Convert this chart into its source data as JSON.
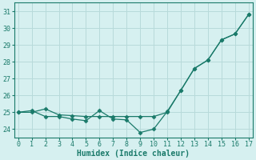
{
  "xlabel": "Humidex (Indice chaleur)",
  "x": [
    0,
    1,
    2,
    3,
    4,
    5,
    6,
    7,
    8,
    9,
    10,
    11,
    12,
    13,
    14,
    15,
    16,
    17
  ],
  "y_line1": [
    25.0,
    25.0,
    25.2,
    24.85,
    24.8,
    24.75,
    24.75,
    24.75,
    24.75,
    24.75,
    24.75,
    25.0,
    26.3,
    27.6,
    28.1,
    29.3,
    29.65,
    30.8
  ],
  "y_line2": [
    25.0,
    25.1,
    24.75,
    24.75,
    24.6,
    24.5,
    25.1,
    24.6,
    24.55,
    23.8,
    24.0,
    25.05,
    26.3,
    27.6,
    28.1,
    29.3,
    29.65,
    30.8
  ],
  "line_color": "#1a7a6a",
  "marker": "D",
  "markersize": 2.5,
  "linewidth": 0.9,
  "background_color": "#d6f0f0",
  "grid_color": "#b8dada",
  "ylim": [
    23.5,
    31.5
  ],
  "xlim": [
    -0.3,
    17.3
  ],
  "yticks": [
    24,
    25,
    26,
    27,
    28,
    29,
    30,
    31
  ],
  "xticks": [
    0,
    1,
    2,
    3,
    4,
    5,
    6,
    7,
    8,
    9,
    10,
    11,
    12,
    13,
    14,
    15,
    16,
    17
  ],
  "tick_fontsize": 6,
  "xlabel_fontsize": 7,
  "figsize": [
    3.2,
    2.0
  ],
  "dpi": 100
}
